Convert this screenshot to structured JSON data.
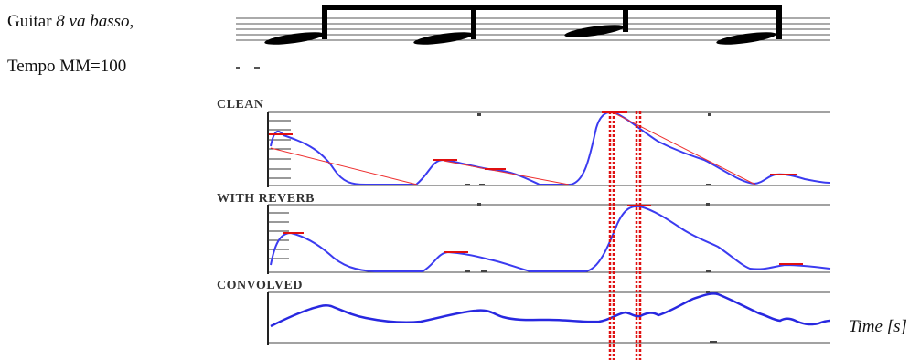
{
  "caption": {
    "line1_prefix": "Guitar ",
    "line1_italic": "8 va basso",
    "line1_suffix": ",",
    "line2": "Tempo MM=100"
  },
  "panels": [
    {
      "id": "clean",
      "label": "CLEAN"
    },
    {
      "id": "reverb",
      "label": "WITH REVERB"
    },
    {
      "id": "convolved",
      "label": "CONVOLVED"
    }
  ],
  "time_axis_label": "Time [s]",
  "colors": {
    "envelope": "#3b3bf0",
    "onset_markers": "#e01010",
    "staff": "#555555",
    "notes": "#000000"
  }
}
